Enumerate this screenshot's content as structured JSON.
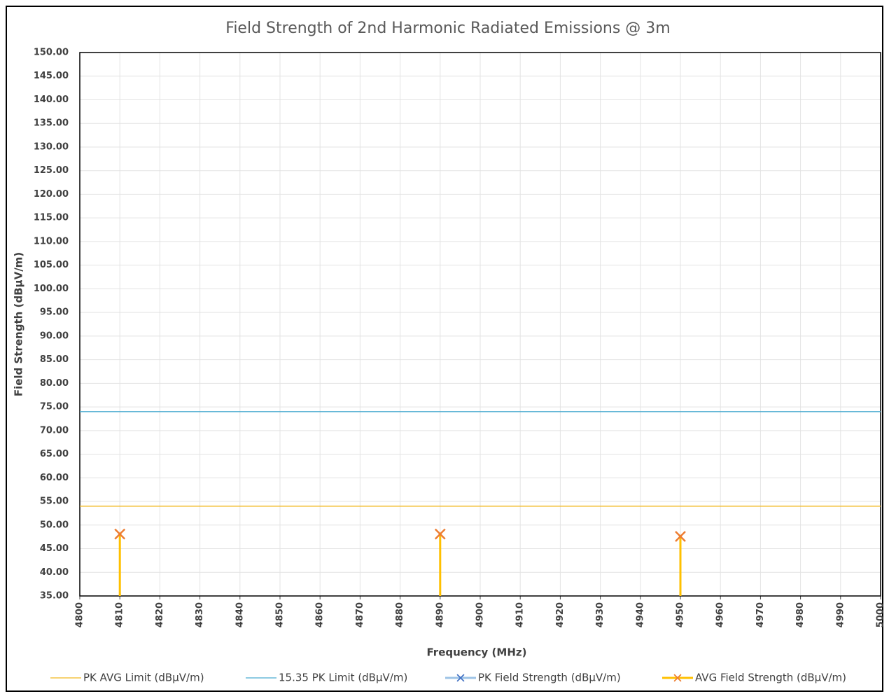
{
  "chart_data": {
    "type": "line",
    "title": "Field Strength of 2nd Harmonic Radiated Emissions @ 3m",
    "x_label": "Frequency (MHz)",
    "y_label": "Field Strength (dBµV/m)",
    "xlim": [
      4800,
      5000
    ],
    "xticks": [
      4800,
      4810,
      4820,
      4830,
      4840,
      4850,
      4860,
      4870,
      4880,
      4890,
      4900,
      4910,
      4920,
      4930,
      4940,
      4950,
      4960,
      4970,
      4980,
      4990,
      5000
    ],
    "ylim": [
      35,
      150
    ],
    "yticks": [
      {
        "value": 35,
        "label": "35.00"
      },
      {
        "value": 40,
        "label": "40.00"
      },
      {
        "value": 45,
        "label": "45.00"
      },
      {
        "value": 50,
        "label": "50.00"
      },
      {
        "value": 55,
        "label": "55.00"
      },
      {
        "value": 60,
        "label": "60.00"
      },
      {
        "value": 65,
        "label": "65.00"
      },
      {
        "value": 70,
        "label": "70.00"
      },
      {
        "value": 75,
        "label": "75.00"
      },
      {
        "value": 80,
        "label": "80.00"
      },
      {
        "value": 85,
        "label": "85.00"
      },
      {
        "value": 90,
        "label": "90.00"
      },
      {
        "value": 95,
        "label": "95.00"
      },
      {
        "value": 100,
        "label": "100.00"
      },
      {
        "value": 105,
        "label": "105.00"
      },
      {
        "value": 110,
        "label": "110.00"
      },
      {
        "value": 115,
        "label": "115.00"
      },
      {
        "value": 120,
        "label": "120.00"
      },
      {
        "value": 125,
        "label": "125.00"
      },
      {
        "value": 130,
        "label": "130.00"
      },
      {
        "value": 135,
        "label": "135.00"
      },
      {
        "value": 140,
        "label": "140.00"
      },
      {
        "value": 145,
        "label": "145.00"
      },
      {
        "value": 150,
        "label": "150.00"
      }
    ],
    "grid": true,
    "legend": "bottom",
    "series": [
      {
        "name": "PK AVG Limit (dBµV/m)",
        "color": "#f2b81d",
        "x": [
          4800,
          5000
        ],
        "values": [
          54,
          54
        ]
      },
      {
        "name": "15.35 PK Limit (dBµV/m)",
        "color": "#4bacd0",
        "x": [
          4800,
          5000
        ],
        "values": [
          74,
          74
        ]
      },
      {
        "name": "PK Field Strength (dBµV/m)",
        "color": "#9dc3e6",
        "marker_color": "#4472c4",
        "x": [
          4810,
          4890,
          4950
        ],
        "values": [
          null,
          null,
          null
        ],
        "drop_lines": true
      },
      {
        "name": "AVG Field Strength (dBµV/m)",
        "color": "#ffc000",
        "marker_color": "#ed7d31",
        "x": [
          4810,
          4890,
          4950
        ],
        "values": [
          48.1,
          48.1,
          47.6
        ],
        "drop_lines": true
      }
    ]
  }
}
